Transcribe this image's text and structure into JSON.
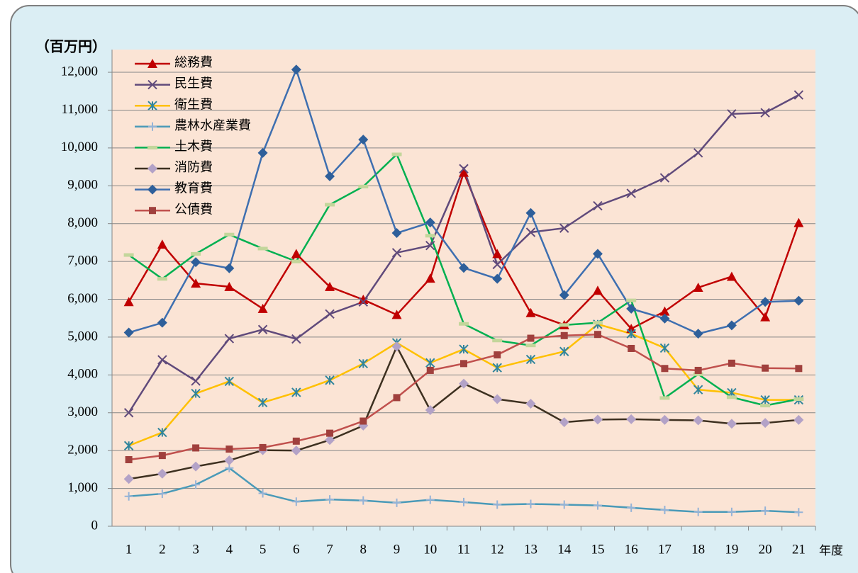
{
  "chart_data": {
    "type": "line",
    "y_axis_title": "（百万円）",
    "x_axis_title": "年度",
    "categories": [
      "1",
      "2",
      "3",
      "4",
      "5",
      "6",
      "7",
      "8",
      "9",
      "10",
      "11",
      "12",
      "13",
      "14",
      "15",
      "16",
      "17",
      "18",
      "19",
      "20",
      "21"
    ],
    "ylim": [
      0,
      12600
    ],
    "yticks": [
      0,
      {
        "value": 1000,
        "label": "1,000"
      },
      {
        "value": 2000,
        "label": "2,000"
      },
      {
        "value": 3000,
        "label": "3,000"
      },
      {
        "value": 4000,
        "label": "4,000"
      },
      {
        "value": 5000,
        "label": "5,000"
      },
      {
        "value": 6000,
        "label": "6,000"
      },
      {
        "value": 7000,
        "label": "7,000"
      },
      {
        "value": 8000,
        "label": "8,000"
      },
      {
        "value": 9000,
        "label": "9,000"
      },
      {
        "value": 10000,
        "label": "10,000"
      },
      {
        "value": 11000,
        "label": "11,000"
      },
      {
        "value": 12000,
        "label": "12,000"
      }
    ],
    "grid": true,
    "legend": "upper left",
    "series": [
      {
        "name": "総務費",
        "color": "#c00000",
        "marker": "triangle",
        "values": [
          5930,
          7450,
          6420,
          6330,
          5750,
          7200,
          6330,
          5990,
          5590,
          6550,
          9350,
          7200,
          5640,
          5320,
          6230,
          5220,
          5680,
          6310,
          6600,
          5530,
          8020
        ]
      },
      {
        "name": "民生費",
        "color": "#604a7b",
        "marker": "x",
        "values": [
          3000,
          4400,
          3840,
          4960,
          5200,
          4950,
          5610,
          5930,
          7230,
          7420,
          9450,
          6920,
          7770,
          7880,
          8470,
          8800,
          9210,
          9870,
          10900,
          10930,
          11400
        ]
      },
      {
        "name": "衛生費",
        "color": "#ffc000",
        "marker_color": "#31859c",
        "marker": "asterisk",
        "values": [
          2130,
          2480,
          3510,
          3830,
          3270,
          3540,
          3860,
          4300,
          4850,
          4320,
          4680,
          4190,
          4410,
          4620,
          5340,
          5090,
          4710,
          3610,
          3530,
          3340,
          3340
        ]
      },
      {
        "name": "農林水産業費",
        "color": "#4a9ab8",
        "marker_color": "#95b3d7",
        "marker": "plus",
        "values": [
          790,
          860,
          1100,
          1540,
          870,
          650,
          710,
          680,
          620,
          700,
          640,
          570,
          590,
          570,
          550,
          490,
          430,
          380,
          380,
          410,
          370
        ]
      },
      {
        "name": "土木費",
        "color": "#00b050",
        "marker_color": "#c3d69b",
        "marker": "dash",
        "values": [
          7170,
          6540,
          7200,
          7710,
          7340,
          7000,
          8500,
          8980,
          9830,
          7680,
          5350,
          4910,
          4780,
          5320,
          5380,
          5970,
          3390,
          4020,
          3410,
          3190,
          3360
        ]
      },
      {
        "name": "消防費",
        "color": "#3d3020",
        "marker_color": "#b3a2c7",
        "marker": "diamond",
        "values": [
          1250,
          1390,
          1580,
          1740,
          2010,
          2000,
          2280,
          2660,
          4750,
          3070,
          3770,
          3360,
          3240,
          2750,
          2820,
          2830,
          2810,
          2800,
          2710,
          2730,
          2810
        ]
      },
      {
        "name": "教育費",
        "color": "#3e6fb0",
        "marker_color": "#2e5f9a",
        "marker": "diamond",
        "values": [
          5120,
          5380,
          6980,
          6820,
          9870,
          12070,
          9250,
          10220,
          7750,
          8030,
          6830,
          6540,
          8280,
          6110,
          7200,
          5750,
          5490,
          5090,
          5310,
          5930,
          5960
        ]
      },
      {
        "name": "公債費",
        "color": "#c0504d",
        "marker_color": "#a0403d",
        "marker": "square",
        "values": [
          1760,
          1870,
          2070,
          2040,
          2080,
          2250,
          2460,
          2780,
          3400,
          4120,
          4300,
          4530,
          4970,
          5040,
          5070,
          4700,
          4170,
          4120,
          4310,
          4180,
          4170
        ]
      }
    ]
  }
}
